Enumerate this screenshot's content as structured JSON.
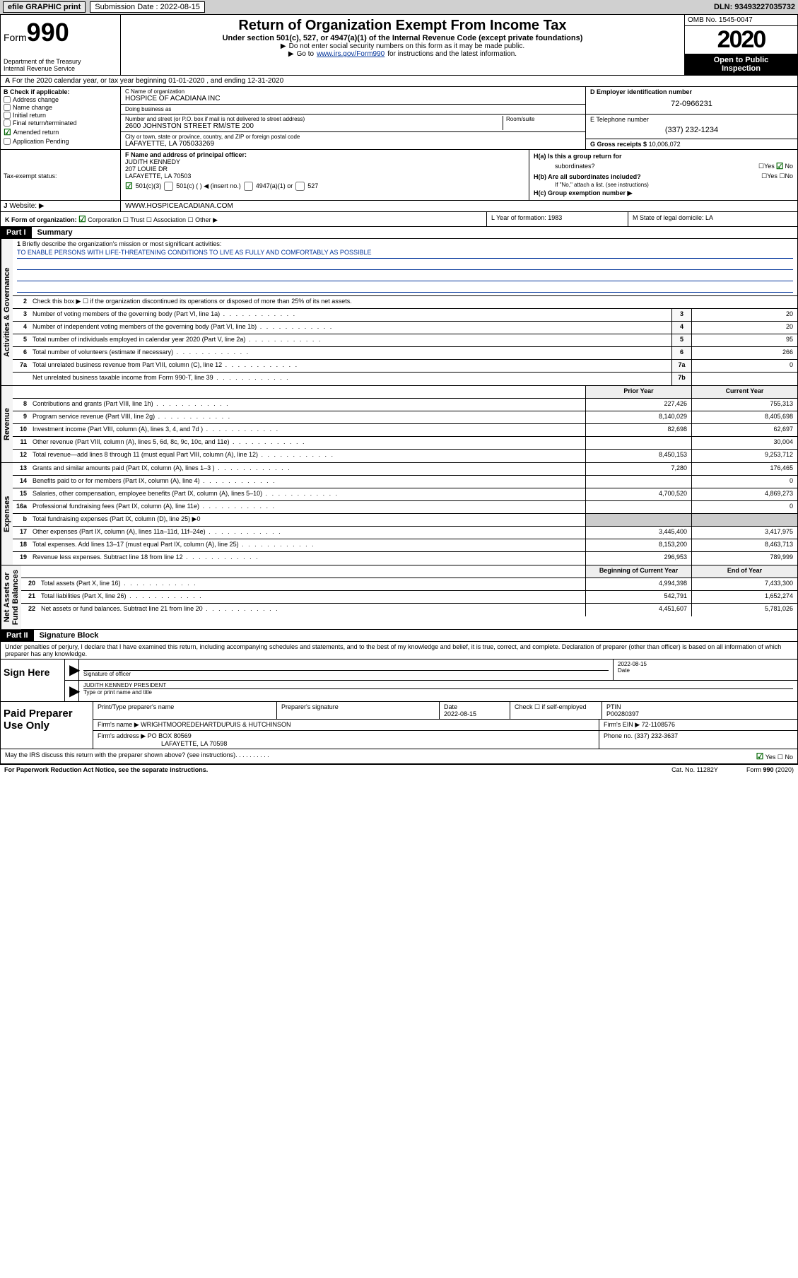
{
  "topbar": {
    "efile": "efile GRAPHIC print",
    "subdate_lbl": "Submission Date : 2022-08-15",
    "dln": "DLN: 93493227035732"
  },
  "header": {
    "form_prefix": "Form",
    "form_num": "990",
    "dept": "Department of the Treasury\nInternal Revenue Service",
    "title": "Return of Organization Exempt From Income Tax",
    "sub": "Under section 501(c), 527, or 4947(a)(1) of the Internal Revenue Code (except private foundations)",
    "note1": "Do not enter social security numbers on this form as it may be made public.",
    "note2_pre": "Go to ",
    "note2_link": "www.irs.gov/Form990",
    "note2_post": " for instructions and the latest information.",
    "omb": "OMB No. 1545-0047",
    "year": "2020",
    "openpub": "Open to Public\nInspection"
  },
  "rowA": "For the 2020 calendar year, or tax year beginning 01-01-2020   , and ending 12-31-2020",
  "checkB": {
    "title": "B Check if applicable:",
    "items": [
      "Address change",
      "Name change",
      "Initial return",
      "Final return/terminated",
      "Amended return",
      "Application Pending"
    ],
    "checked_idx": 4
  },
  "blockC": {
    "name_lbl": "C Name of organization",
    "name": "HOSPICE OF ACADIANA INC",
    "dba_lbl": "Doing business as",
    "dba": "",
    "street_lbl": "Number and street (or P.O. box if mail is not delivered to street address)",
    "room_lbl": "Room/suite",
    "street": "2600 JOHNSTON STREET RM/STE 200",
    "city_lbl": "City or town, state or province, country, and ZIP or foreign postal code",
    "city": "LAFAYETTE, LA  705033269"
  },
  "blockD": {
    "ein_lbl": "D Employer identification number",
    "ein": "72-0966231",
    "phone_lbl": "E Telephone number",
    "phone": "(337) 232-1234",
    "gross_lbl": "G Gross receipts $",
    "gross": "10,006,072"
  },
  "blockF": {
    "lbl": "F Name and address of principal officer:",
    "name": "JUDITH KENNEDY",
    "addr1": "207 LOUIE DR",
    "addr2": "LAFAYETTE, LA  70503"
  },
  "blockH": {
    "ha": "H(a)  Is this a group return for",
    "ha2": "subordinates?",
    "hb": "H(b)  Are all subordinates included?",
    "hnote": "If \"No,\" attach a list. (see instructions)",
    "hc": "H(c)  Group exemption number ▶"
  },
  "taxExempt": {
    "lbl": "Tax-exempt status:",
    "o1": "501(c)(3)",
    "o2": "501(c) (   ) ◀ (insert no.)",
    "o3": "4947(a)(1) or",
    "o4": "527"
  },
  "website": {
    "lbl": "Website: ▶",
    "val": "WWW.HOSPICEACADIANA.COM"
  },
  "rowK": {
    "lbl": "K Form of organization:",
    "opts": [
      "Corporation",
      "Trust",
      "Association",
      "Other ▶"
    ]
  },
  "rowLM": {
    "L": "L Year of formation: 1983",
    "M": "M State of legal domicile: LA"
  },
  "part1": {
    "title": "Part I",
    "summary": "Summary",
    "q1": "Briefly describe the organization's mission or most significant activities:",
    "mission": "TO ENABLE PERSONS WITH LIFE-THREATENING CONDITIONS TO LIVE AS FULLY AND COMFORTABLY AS POSSIBLE",
    "q2": "Check this box ▶ ☐  if the organization discontinued its operations or disposed of more than 25% of its net assets.",
    "rows_gov": [
      {
        "n": "3",
        "d": "Number of voting members of the governing body (Part VI, line 1a)",
        "box": "3",
        "v": "20"
      },
      {
        "n": "4",
        "d": "Number of independent voting members of the governing body (Part VI, line 1b)",
        "box": "4",
        "v": "20"
      },
      {
        "n": "5",
        "d": "Total number of individuals employed in calendar year 2020 (Part V, line 2a)",
        "box": "5",
        "v": "95"
      },
      {
        "n": "6",
        "d": "Total number of volunteers (estimate if necessary)",
        "box": "6",
        "v": "266"
      },
      {
        "n": "7a",
        "d": "Total unrelated business revenue from Part VIII, column (C), line 12",
        "box": "7a",
        "v": "0"
      },
      {
        "n": "",
        "d": "Net unrelated business taxable income from Form 990-T, line 39",
        "box": "7b",
        "v": ""
      }
    ],
    "colhdr": {
      "prior": "Prior Year",
      "curr": "Current Year"
    },
    "revenue": [
      {
        "n": "8",
        "d": "Contributions and grants (Part VIII, line 1h)",
        "p": "227,426",
        "c": "755,313"
      },
      {
        "n": "9",
        "d": "Program service revenue (Part VIII, line 2g)",
        "p": "8,140,029",
        "c": "8,405,698"
      },
      {
        "n": "10",
        "d": "Investment income (Part VIII, column (A), lines 3, 4, and 7d )",
        "p": "82,698",
        "c": "62,697"
      },
      {
        "n": "11",
        "d": "Other revenue (Part VIII, column (A), lines 5, 6d, 8c, 9c, 10c, and 11e)",
        "p": "",
        "c": "30,004"
      },
      {
        "n": "12",
        "d": "Total revenue—add lines 8 through 11 (must equal Part VIII, column (A), line 12)",
        "p": "8,450,153",
        "c": "9,253,712"
      }
    ],
    "expenses": [
      {
        "n": "13",
        "d": "Grants and similar amounts paid (Part IX, column (A), lines 1–3 )",
        "p": "7,280",
        "c": "176,465"
      },
      {
        "n": "14",
        "d": "Benefits paid to or for members (Part IX, column (A), line 4)",
        "p": "",
        "c": "0"
      },
      {
        "n": "15",
        "d": "Salaries, other compensation, employee benefits (Part IX, column (A), lines 5–10)",
        "p": "4,700,520",
        "c": "4,869,273"
      },
      {
        "n": "16a",
        "d": "Professional fundraising fees (Part IX, column (A), line 11e)",
        "p": "",
        "c": "0"
      },
      {
        "n": "b",
        "d": "Total fundraising expenses (Part IX, column (D), line 25) ▶0",
        "p": null,
        "c": null
      },
      {
        "n": "17",
        "d": "Other expenses (Part IX, column (A), lines 11a–11d, 11f–24e)",
        "p": "3,445,400",
        "c": "3,417,975"
      },
      {
        "n": "18",
        "d": "Total expenses. Add lines 13–17 (must equal Part IX, column (A), line 25)",
        "p": "8,153,200",
        "c": "8,463,713"
      },
      {
        "n": "19",
        "d": "Revenue less expenses. Subtract line 18 from line 12",
        "p": "296,953",
        "c": "789,999"
      }
    ],
    "colhdr2": {
      "prior": "Beginning of Current Year",
      "curr": "End of Year"
    },
    "netassets": [
      {
        "n": "20",
        "d": "Total assets (Part X, line 16)",
        "p": "4,994,398",
        "c": "7,433,300"
      },
      {
        "n": "21",
        "d": "Total liabilities (Part X, line 26)",
        "p": "542,791",
        "c": "1,652,274"
      },
      {
        "n": "22",
        "d": "Net assets or fund balances. Subtract line 21 from line 20",
        "p": "4,451,607",
        "c": "5,781,026"
      }
    ]
  },
  "vtabs": {
    "gov": "Activities & Governance",
    "rev": "Revenue",
    "exp": "Expenses",
    "net": "Net Assets or\nFund Balances"
  },
  "part2": {
    "title": "Part II",
    "sigblock": "Signature Block",
    "decl": "Under penalties of perjury, I declare that I have examined this return, including accompanying schedules and statements, and to the best of my knowledge and belief, it is true, correct, and complete. Declaration of preparer (other than officer) is based on all information of which preparer has any knowledge."
  },
  "sign": {
    "here": "Sign Here",
    "sig_lbl": "Signature of officer",
    "date_lbl": "Date",
    "date": "2022-08-15",
    "name": "JUDITH KENNEDY PRESIDENT",
    "name_lbl": "Type or print name and title"
  },
  "paid": {
    "lbl": "Paid Preparer Use Only",
    "r1": {
      "c1": "Print/Type preparer's name",
      "c2": "Preparer's signature",
      "c3_lbl": "Date",
      "c3": "2022-08-15",
      "c4": "Check ☐ if self-employed",
      "c5_lbl": "PTIN",
      "c5": "P00280397"
    },
    "r2": {
      "c1": "Firm's name    ▶",
      "c1v": "WRIGHTMOOREDEHARTDUPUIS & HUTCHINSON",
      "c2": "Firm's EIN ▶",
      "c2v": "72-1108576"
    },
    "r3": {
      "c1": "Firm's address ▶",
      "c1v": "PO BOX 80569",
      "c2": "Phone no.",
      "c2v": "(337) 232-3637"
    },
    "r3b": "LAFAYETTE, LA  70598",
    "discuss": "May the IRS discuss this return with the preparer shown above? (see instructions)"
  },
  "footer": {
    "l": "For Paperwork Reduction Act Notice, see the separate instructions.",
    "m": "Cat. No. 11282Y",
    "r": "Form 990 (2020)"
  },
  "colors": {
    "link": "#003399",
    "check": "#006400"
  }
}
